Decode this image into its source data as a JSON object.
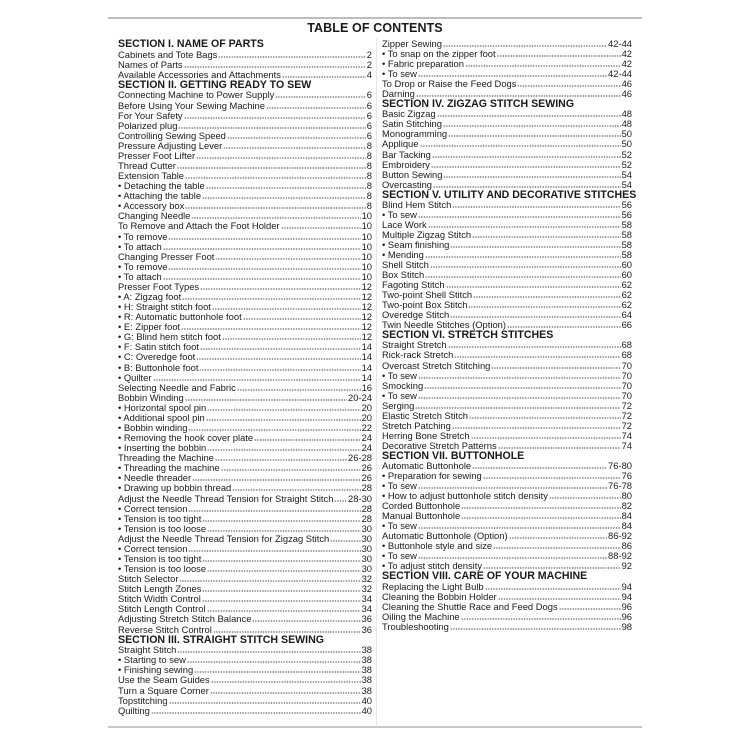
{
  "title": "TABLE OF CONTENTS",
  "columns": {
    "left": [
      {
        "type": "section",
        "label": "SECTION I. NAME OF PARTS"
      },
      {
        "type": "entry",
        "label": "Cabinets and Tote Bags",
        "page": "2"
      },
      {
        "type": "entry",
        "label": "Names of Parts",
        "page": "2"
      },
      {
        "type": "entry",
        "label": "Available Accessories and Attachments",
        "page": "4"
      },
      {
        "type": "section",
        "label": "SECTION II. GETTING READY TO SEW"
      },
      {
        "type": "entry",
        "label": "Connecting Machine to Power Supply",
        "page": "6"
      },
      {
        "type": "entry",
        "label": "Before Using Your Sewing Machine",
        "page": "6"
      },
      {
        "type": "entry",
        "label": "For Your Safety",
        "page": "6"
      },
      {
        "type": "entry",
        "label": "Polarized plug",
        "page": "6"
      },
      {
        "type": "entry",
        "label": "Controlling Sewing Speed",
        "page": "6"
      },
      {
        "type": "entry",
        "label": "Pressure Adjusting Lever",
        "page": "8"
      },
      {
        "type": "entry",
        "label": "Presser Foot Lifter",
        "page": "8"
      },
      {
        "type": "entry",
        "label": "Thread Cutter",
        "page": "8"
      },
      {
        "type": "entry",
        "label": "Extension Table",
        "page": "8"
      },
      {
        "type": "entry",
        "label": "• Detaching the table",
        "page": "8"
      },
      {
        "type": "entry",
        "label": "• Attaching the table",
        "page": "8"
      },
      {
        "type": "entry",
        "label": "• Accessory box",
        "page": "8"
      },
      {
        "type": "entry",
        "label": "Changing Needle",
        "page": "10"
      },
      {
        "type": "entry",
        "label": "To Remove and Attach the Foot Holder",
        "page": "10"
      },
      {
        "type": "entry",
        "label": "• To remove",
        "page": "10"
      },
      {
        "type": "entry",
        "label": "• To attach",
        "page": "10"
      },
      {
        "type": "entry",
        "label": "Changing Presser Foot",
        "page": "10"
      },
      {
        "type": "entry",
        "label": "• To remove",
        "page": "10"
      },
      {
        "type": "entry",
        "label": "• To attach",
        "page": "10"
      },
      {
        "type": "entry",
        "label": "Presser Foot Types",
        "page": "12"
      },
      {
        "type": "entry",
        "label": "• A: Zigzag foot",
        "page": "12"
      },
      {
        "type": "entry",
        "label": "• H: Straight stitch foot",
        "page": "12"
      },
      {
        "type": "entry",
        "label": "• R: Automatic buttonhole foot",
        "page": "12"
      },
      {
        "type": "entry",
        "label": "• E: Zipper foot",
        "page": "12"
      },
      {
        "type": "entry",
        "label": "• G: Blind hem stitch foot",
        "page": "12"
      },
      {
        "type": "entry",
        "label": "• F: Satin stitch foot",
        "page": "14"
      },
      {
        "type": "entry",
        "label": "• C: Overedge foot",
        "page": "14"
      },
      {
        "type": "entry",
        "label": "• B: Buttonhole foot",
        "page": "14"
      },
      {
        "type": "entry",
        "label": "• Quilter",
        "page": "14"
      },
      {
        "type": "entry",
        "label": "Selecting Needle and Fabric",
        "page": "16"
      },
      {
        "type": "entry",
        "label": "Bobbin Winding",
        "page": "20-24"
      },
      {
        "type": "entry",
        "label": "• Horizontal spool pin",
        "page": "20"
      },
      {
        "type": "entry",
        "label": "• Additional spool pin",
        "page": "20"
      },
      {
        "type": "entry",
        "label": "• Bobbin winding",
        "page": "22"
      },
      {
        "type": "entry",
        "label": "• Removing the hook cover plate",
        "page": "24"
      },
      {
        "type": "entry",
        "label": "• Inserting the bobbin",
        "page": "24"
      },
      {
        "type": "entry",
        "label": "Threading the Machine",
        "page": "26-28"
      },
      {
        "type": "entry",
        "label": "• Threading the machine",
        "page": "26"
      },
      {
        "type": "entry",
        "label": "• Needle threader",
        "page": "26"
      },
      {
        "type": "entry",
        "label": "• Drawing up bobbin thread",
        "page": "28"
      },
      {
        "type": "entry",
        "label": "Adjust the Needle Thread Tension for Straight Stitch",
        "page": "28-30"
      },
      {
        "type": "entry",
        "label": "• Correct tension",
        "page": "28"
      },
      {
        "type": "entry",
        "label": "• Tension is too tight",
        "page": "28"
      },
      {
        "type": "entry",
        "label": "• Tension is too loose",
        "page": "30"
      },
      {
        "type": "entry",
        "label": "Adjust the Needle Thread Tension for Zigzag Stitch",
        "page": "30"
      },
      {
        "type": "entry",
        "label": "• Correct tension",
        "page": "30"
      },
      {
        "type": "entry",
        "label": "• Tension is too tight",
        "page": "30"
      },
      {
        "type": "entry",
        "label": "• Tension is too loose",
        "page": "30"
      },
      {
        "type": "entry",
        "label": "Stitch Selector",
        "page": "32"
      },
      {
        "type": "entry",
        "label": "Stitch Length Zones",
        "page": "32"
      },
      {
        "type": "entry",
        "label": "Stitch Width Control",
        "page": "34"
      },
      {
        "type": "entry",
        "label": "Stitch Length Control",
        "page": "34"
      },
      {
        "type": "entry",
        "label": "Adjusting Stretch Stitch Balance",
        "page": "36"
      },
      {
        "type": "entry",
        "label": "Reverse Stitch Control",
        "page": "36"
      },
      {
        "type": "section",
        "label": "SECTION III. STRAIGHT STITCH SEWING"
      },
      {
        "type": "entry",
        "label": "Straight Stitch",
        "page": "38"
      },
      {
        "type": "entry",
        "label": "• Starting to sew",
        "page": "38"
      },
      {
        "type": "entry",
        "label": "• Finishing sewing",
        "page": "38"
      },
      {
        "type": "entry",
        "label": "Use the Seam Guides",
        "page": "38"
      },
      {
        "type": "entry",
        "label": "Turn a Square Corner",
        "page": "38"
      },
      {
        "type": "entry",
        "label": "Topstitching",
        "page": "40"
      },
      {
        "type": "entry",
        "label": "Quilting",
        "page": "40"
      }
    ],
    "right": [
      {
        "type": "entry",
        "label": "Zipper Sewing",
        "page": "42-44"
      },
      {
        "type": "entry",
        "label": "• To snap on the zipper foot",
        "page": "42"
      },
      {
        "type": "entry",
        "label": "• Fabric preparation",
        "page": "42"
      },
      {
        "type": "entry",
        "label": "• To sew",
        "page": "42-44"
      },
      {
        "type": "entry",
        "label": "To Drop or Raise the Feed Dogs",
        "page": "46"
      },
      {
        "type": "entry",
        "label": "Darning",
        "page": "46"
      },
      {
        "type": "section",
        "label": "SECTION IV. ZIGZAG STITCH SEWING"
      },
      {
        "type": "entry",
        "label": "Basic Zigzag",
        "page": "48"
      },
      {
        "type": "entry",
        "label": "Satin Stitching",
        "page": "48"
      },
      {
        "type": "entry",
        "label": "Monogramming",
        "page": "50"
      },
      {
        "type": "entry",
        "label": "Applique",
        "page": "50"
      },
      {
        "type": "entry",
        "label": "Bar Tacking",
        "page": "52"
      },
      {
        "type": "entry",
        "label": "Embroidery",
        "page": "52"
      },
      {
        "type": "entry",
        "label": "Button Sewing",
        "page": "54"
      },
      {
        "type": "entry",
        "label": "Overcasting",
        "page": "54"
      },
      {
        "type": "section",
        "label": "SECTION V. UTILITY AND DECORATIVE STITCHES"
      },
      {
        "type": "entry",
        "label": "Blind Hem Stitch",
        "page": "56"
      },
      {
        "type": "entry",
        "label": "• To sew",
        "page": "56"
      },
      {
        "type": "entry",
        "label": "Lace Work",
        "page": "58"
      },
      {
        "type": "entry",
        "label": "Multiple Zigzag Stitch",
        "page": "58"
      },
      {
        "type": "entry",
        "label": "• Seam finishing",
        "page": "58"
      },
      {
        "type": "entry",
        "label": "• Mending",
        "page": "58"
      },
      {
        "type": "entry",
        "label": "Shell Stitch",
        "page": "60"
      },
      {
        "type": "entry",
        "label": "Box Stitch",
        "page": "60"
      },
      {
        "type": "entry",
        "label": "Fagoting Stitch",
        "page": "62"
      },
      {
        "type": "entry",
        "label": "Two-point Shell Stitch",
        "page": "62"
      },
      {
        "type": "entry",
        "label": "Two-point Box Stitch",
        "page": "62"
      },
      {
        "type": "entry",
        "label": "Overedge Stitch",
        "page": "64"
      },
      {
        "type": "entry",
        "label": "Twin Needle Stitches (Option)",
        "page": "66"
      },
      {
        "type": "section",
        "label": "SECTION VI. STRETCH STITCHES"
      },
      {
        "type": "entry",
        "label": "Straight Stretch",
        "page": "68"
      },
      {
        "type": "entry",
        "label": "Rick-rack Stretch",
        "page": "68"
      },
      {
        "type": "entry",
        "label": "Overcast Stretch Stitching",
        "page": "70"
      },
      {
        "type": "entry",
        "label": "• To sew",
        "page": "70"
      },
      {
        "type": "entry",
        "label": "Smocking",
        "page": "70"
      },
      {
        "type": "entry",
        "label": "• To sew",
        "page": "70"
      },
      {
        "type": "entry",
        "label": "Serging",
        "page": "72"
      },
      {
        "type": "entry",
        "label": "Elastic Stretch Stitch",
        "page": "72"
      },
      {
        "type": "entry",
        "label": "Stretch Patching",
        "page": "72"
      },
      {
        "type": "entry",
        "label": "Herring Bone Stretch",
        "page": "74"
      },
      {
        "type": "entry",
        "label": "Decorative Stretch Patterns",
        "page": "74"
      },
      {
        "type": "section",
        "label": "SECTION VII. BUTTONHOLE"
      },
      {
        "type": "entry",
        "label": "Automatic Buttonhole",
        "page": "76-80"
      },
      {
        "type": "entry",
        "label": "• Preparation for sewing",
        "page": "76"
      },
      {
        "type": "entry",
        "label": "• To sew",
        "page": "76-78"
      },
      {
        "type": "entry",
        "label": "• How to adjust buttonhole stitch density",
        "page": "80"
      },
      {
        "type": "entry",
        "label": "Corded Buttonhole",
        "page": "82"
      },
      {
        "type": "entry",
        "label": "Manual Buttonhole",
        "page": "84"
      },
      {
        "type": "entry",
        "label": "• To sew",
        "page": "84"
      },
      {
        "type": "entry",
        "label": "Automatic Buttonhole (Option)",
        "page": "86-92"
      },
      {
        "type": "entry",
        "label": "• Buttonhole style and size",
        "page": "86"
      },
      {
        "type": "entry",
        "label": "• To sew",
        "page": "88-92"
      },
      {
        "type": "entry",
        "label": "• To adjust stitch density",
        "page": "92"
      },
      {
        "type": "section",
        "label": "SECTION VIII. CARE OF YOUR MACHINE"
      },
      {
        "type": "entry",
        "label": "Replacing the Light Bulb",
        "page": "94"
      },
      {
        "type": "entry",
        "label": "Cleaning the Bobbin Holder",
        "page": "94"
      },
      {
        "type": "entry",
        "label": "Cleaning the Shuttle Race and Feed Dogs",
        "page": "96"
      },
      {
        "type": "entry",
        "label": "Oiling the Machine",
        "page": "96"
      },
      {
        "type": "entry",
        "label": "Troubleshooting",
        "page": "98"
      }
    ]
  }
}
